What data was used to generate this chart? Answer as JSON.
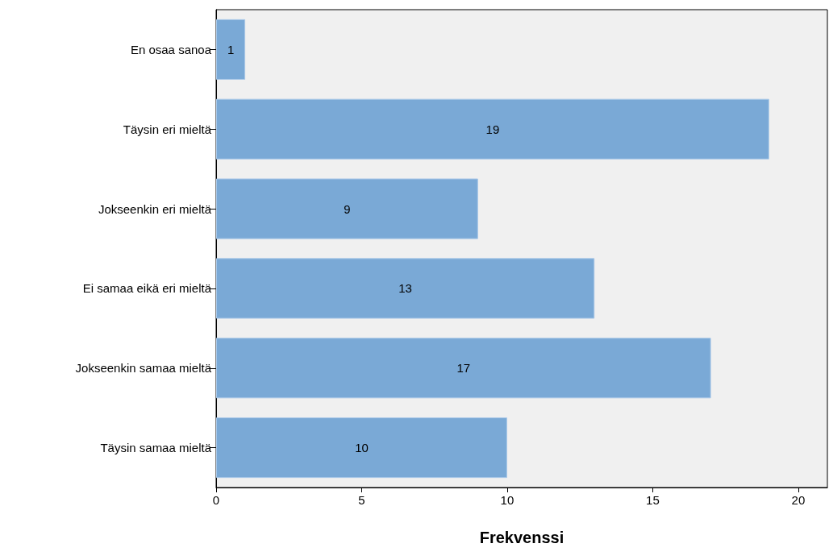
{
  "chart_data": {
    "type": "bar",
    "orientation": "horizontal",
    "xlabel": "Frekvenssi",
    "categories": [
      "En osaa sanoa",
      "Täysin eri mieltä",
      "Jokseenkin eri mieltä",
      "Ei samaa eikä eri mieltä",
      "Jokseenkin samaa mieltä",
      "Täysin samaa mieltä"
    ],
    "values": [
      1,
      19,
      9,
      13,
      17,
      10
    ],
    "color": "#7aa9d6",
    "xlim": [
      0,
      21
    ],
    "xticks": [
      0,
      5,
      10,
      15,
      20
    ],
    "grid": false,
    "data_labels": true
  }
}
